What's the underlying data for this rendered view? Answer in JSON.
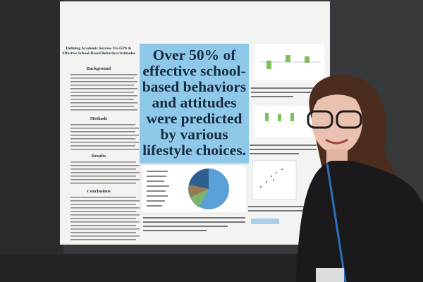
{
  "poster": {
    "title_lines": [
      "Defining Academic Success Via GPA &",
      "Effective School-Based Behaviors/Attitudes"
    ],
    "headings": [
      "Background",
      "Methods",
      "Results",
      "Conclusions"
    ],
    "headline_lines": [
      "Over 50% of",
      "effective school-",
      "based behaviors",
      "and attitudes",
      "were predicted",
      "by various",
      "lifestyle choices."
    ]
  }
}
